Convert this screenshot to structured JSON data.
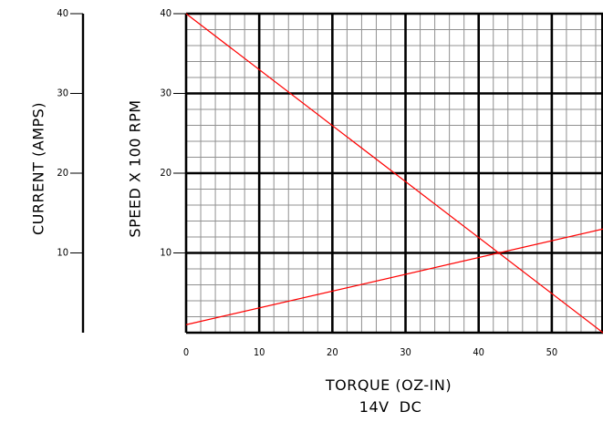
{
  "chart_data": {
    "type": "line",
    "xlabel": "TORQUE (OZ-IN)",
    "subtitle": "14V  DC",
    "ylabel_left": "CURRENT (AMPS)",
    "ylabel_right": "SPEED X 100 RPM",
    "xlim": [
      0,
      57
    ],
    "ylim": [
      0,
      40
    ],
    "x_ticks": [
      0,
      10,
      20,
      30,
      40,
      50
    ],
    "x_tick_labels": [
      "0",
      "10",
      "20",
      "30",
      "40",
      "50"
    ],
    "y_ticks": [
      10,
      20,
      30,
      40
    ],
    "y_tick_labels": [
      "10",
      "20",
      "30",
      "40"
    ],
    "grid": true,
    "grid_minor_step": 2,
    "grid_major_step": 10,
    "line_color": "#ff0000",
    "series": [
      {
        "x": [
          0,
          57
        ],
        "y": [
          40,
          0
        ]
      },
      {
        "x": [
          0,
          57
        ],
        "y": [
          1,
          13
        ]
      }
    ]
  }
}
